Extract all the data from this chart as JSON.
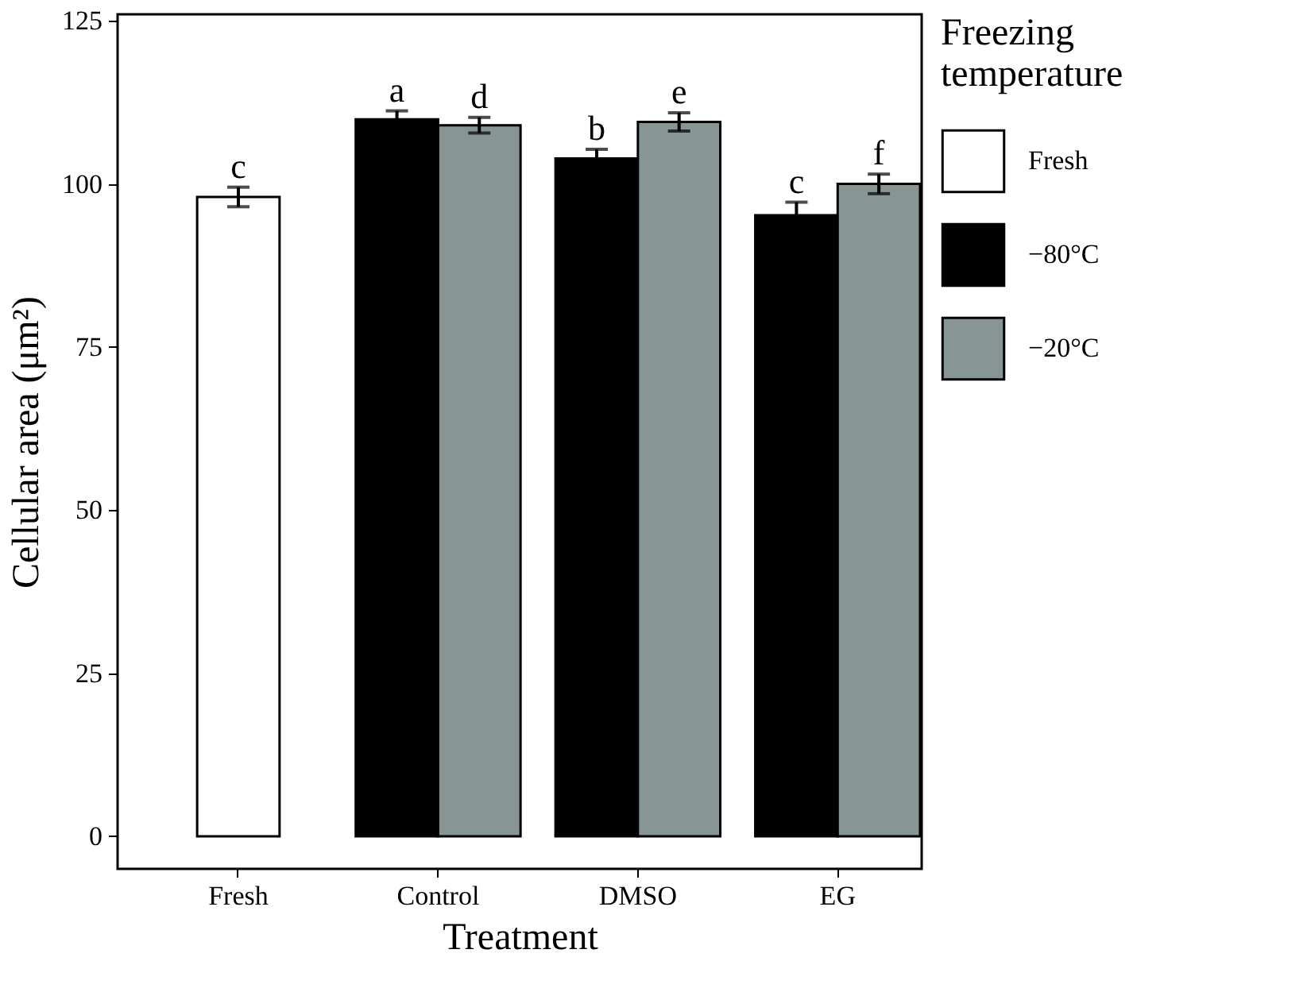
{
  "chart_data": {
    "type": "bar",
    "xlabel": "Treatment",
    "ylabel": "Cellular area (μm²)",
    "legend_title": "Freezing temperature",
    "categories": [
      "Fresh",
      "Control",
      "DMSO",
      "EG"
    ],
    "series": [
      {
        "name": "Fresh",
        "color": "#ffffff",
        "values": [
          98.0,
          null,
          null,
          null
        ],
        "errors": [
          1.5,
          null,
          null,
          null
        ]
      },
      {
        "name": "−80°C",
        "color": "#000000",
        "values": [
          null,
          109.9,
          103.9,
          95.2
        ],
        "errors": [
          null,
          1.3,
          1.4,
          2.0
        ]
      },
      {
        "name": "−20°C",
        "color": "#889595",
        "values": [
          null,
          109.0,
          109.5,
          100.0
        ],
        "errors": [
          null,
          1.2,
          1.4,
          1.5
        ]
      }
    ],
    "ylim": [
      -5,
      126
    ],
    "yticks": [
      0,
      25,
      50,
      75,
      100,
      125
    ],
    "grid": false,
    "legend": "right",
    "annotations": [
      "c",
      "a",
      "d",
      "b",
      "e",
      "c",
      "f"
    ]
  }
}
